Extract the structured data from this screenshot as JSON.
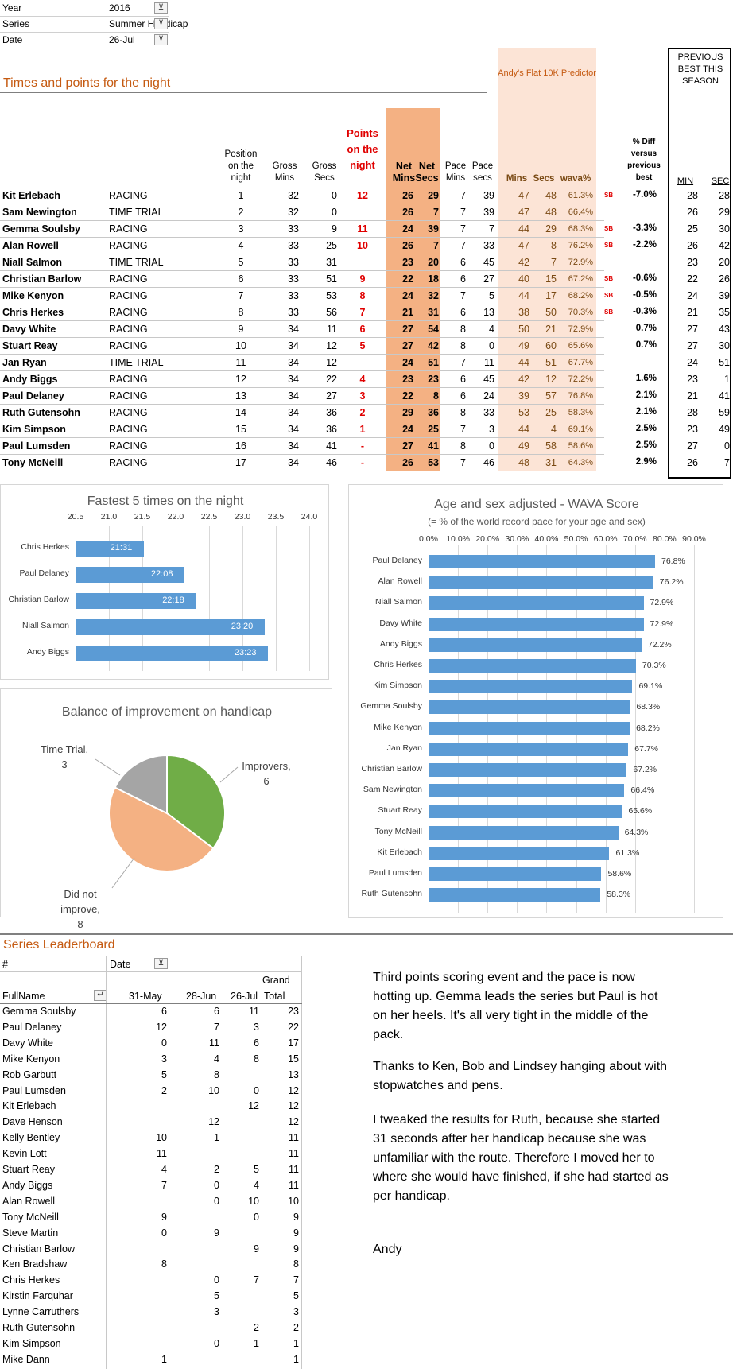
{
  "filters": [
    {
      "label": "Year",
      "value": "2016"
    },
    {
      "label": "Series",
      "value": "Summer Handicap"
    },
    {
      "label": "Date",
      "value": "26-Jul"
    }
  ],
  "section_title": "Times and points for the night",
  "predictor_title": "Andy's Flat 10K Predictor",
  "prev_best_title": "PREVIOUS BEST THIS SEASON",
  "headers": {
    "position": "Position on the night",
    "gross_mins": "Gross Mins",
    "gross_secs": "Gross Secs",
    "points": "Points on the night",
    "net_mins": "Net Mins",
    "net_secs": "Net Secs",
    "pace_mins": "Pace Mins",
    "pace_secs": "Pace secs",
    "p_mins": "Mins",
    "p_secs": "Secs",
    "wava": "wava%",
    "diff": "% Diff versus previous best",
    "min": "MIN",
    "sec": "SEC"
  },
  "results": [
    {
      "name": "Kit Erlebach",
      "type": "RACING",
      "pos": "1",
      "gm": "32",
      "gs": "0",
      "pts": "12",
      "nm": "26",
      "ns": "29",
      "pm": "7",
      "ps": "39",
      "mm": "47",
      "ms": "48",
      "wava": "61.3%",
      "sb": "SB",
      "diff": "-7.0%",
      "min": "28",
      "sec": "28"
    },
    {
      "name": "Sam Newington",
      "type": "TIME TRIAL",
      "pos": "2",
      "gm": "32",
      "gs": "0",
      "pts": "",
      "nm": "26",
      "ns": "7",
      "pm": "7",
      "ps": "39",
      "mm": "47",
      "ms": "48",
      "wava": "66.4%",
      "sb": "",
      "diff": "",
      "min": "26",
      "sec": "29"
    },
    {
      "name": "Gemma Soulsby",
      "type": "RACING",
      "pos": "3",
      "gm": "33",
      "gs": "9",
      "pts": "11",
      "nm": "24",
      "ns": "39",
      "pm": "7",
      "ps": "7",
      "mm": "44",
      "ms": "29",
      "wava": "68.3%",
      "sb": "SB",
      "diff": "-3.3%",
      "min": "25",
      "sec": "30"
    },
    {
      "name": "Alan Rowell",
      "type": "RACING",
      "pos": "4",
      "gm": "33",
      "gs": "25",
      "pts": "10",
      "nm": "26",
      "ns": "7",
      "pm": "7",
      "ps": "33",
      "mm": "47",
      "ms": "8",
      "wava": "76.2%",
      "sb": "SB",
      "diff": "-2.2%",
      "min": "26",
      "sec": "42"
    },
    {
      "name": "Niall Salmon",
      "type": "TIME TRIAL",
      "pos": "5",
      "gm": "33",
      "gs": "31",
      "pts": "",
      "nm": "23",
      "ns": "20",
      "pm": "6",
      "ps": "45",
      "mm": "42",
      "ms": "7",
      "wava": "72.9%",
      "sb": "",
      "diff": "",
      "min": "23",
      "sec": "20"
    },
    {
      "name": "Christian Barlow",
      "type": "RACING",
      "pos": "6",
      "gm": "33",
      "gs": "51",
      "pts": "9",
      "nm": "22",
      "ns": "18",
      "pm": "6",
      "ps": "27",
      "mm": "40",
      "ms": "15",
      "wava": "67.2%",
      "sb": "SB",
      "diff": "-0.6%",
      "min": "22",
      "sec": "26"
    },
    {
      "name": "Mike Kenyon",
      "type": "RACING",
      "pos": "7",
      "gm": "33",
      "gs": "53",
      "pts": "8",
      "nm": "24",
      "ns": "32",
      "pm": "7",
      "ps": "5",
      "mm": "44",
      "ms": "17",
      "wava": "68.2%",
      "sb": "SB",
      "diff": "-0.5%",
      "min": "24",
      "sec": "39"
    },
    {
      "name": "Chris Herkes",
      "type": "RACING",
      "pos": "8",
      "gm": "33",
      "gs": "56",
      "pts": "7",
      "nm": "21",
      "ns": "31",
      "pm": "6",
      "ps": "13",
      "mm": "38",
      "ms": "50",
      "wava": "70.3%",
      "sb": "SB",
      "diff": "-0.3%",
      "min": "21",
      "sec": "35"
    },
    {
      "name": "Davy White",
      "type": "RACING",
      "pos": "9",
      "gm": "34",
      "gs": "11",
      "pts": "6",
      "nm": "27",
      "ns": "54",
      "pm": "8",
      "ps": "4",
      "mm": "50",
      "ms": "21",
      "wava": "72.9%",
      "sb": "",
      "diff": "0.7%",
      "min": "27",
      "sec": "43"
    },
    {
      "name": "Stuart Reay",
      "type": "RACING",
      "pos": "10",
      "gm": "34",
      "gs": "12",
      "pts": "5",
      "nm": "27",
      "ns": "42",
      "pm": "8",
      "ps": "0",
      "mm": "49",
      "ms": "60",
      "wava": "65.6%",
      "sb": "",
      "diff": "0.7%",
      "min": "27",
      "sec": "30"
    },
    {
      "name": "Jan Ryan",
      "type": "TIME TRIAL",
      "pos": "11",
      "gm": "34",
      "gs": "12",
      "pts": "",
      "nm": "24",
      "ns": "51",
      "pm": "7",
      "ps": "11",
      "mm": "44",
      "ms": "51",
      "wava": "67.7%",
      "sb": "",
      "diff": "",
      "min": "24",
      "sec": "51"
    },
    {
      "name": "Andy Biggs",
      "type": "RACING",
      "pos": "12",
      "gm": "34",
      "gs": "22",
      "pts": "4",
      "nm": "23",
      "ns": "23",
      "pm": "6",
      "ps": "45",
      "mm": "42",
      "ms": "12",
      "wava": "72.2%",
      "sb": "",
      "diff": "1.6%",
      "min": "23",
      "sec": "1"
    },
    {
      "name": "Paul Delaney",
      "type": "RACING",
      "pos": "13",
      "gm": "34",
      "gs": "27",
      "pts": "3",
      "nm": "22",
      "ns": "8",
      "pm": "6",
      "ps": "24",
      "mm": "39",
      "ms": "57",
      "wava": "76.8%",
      "sb": "",
      "diff": "2.1%",
      "min": "21",
      "sec": "41"
    },
    {
      "name": "Ruth Gutensohn",
      "type": "RACING",
      "pos": "14",
      "gm": "34",
      "gs": "36",
      "pts": "2",
      "nm": "29",
      "ns": "36",
      "pm": "8",
      "ps": "33",
      "mm": "53",
      "ms": "25",
      "wava": "58.3%",
      "sb": "",
      "diff": "2.1%",
      "min": "28",
      "sec": "59"
    },
    {
      "name": "Kim Simpson",
      "type": "RACING",
      "pos": "15",
      "gm": "34",
      "gs": "36",
      "pts": "1",
      "nm": "24",
      "ns": "25",
      "pm": "7",
      "ps": "3",
      "mm": "44",
      "ms": "4",
      "wava": "69.1%",
      "sb": "",
      "diff": "2.5%",
      "min": "23",
      "sec": "49"
    },
    {
      "name": "Paul Lumsden",
      "type": "RACING",
      "pos": "16",
      "gm": "34",
      "gs": "41",
      "pts": "-",
      "nm": "27",
      "ns": "41",
      "pm": "8",
      "ps": "0",
      "mm": "49",
      "ms": "58",
      "wava": "58.6%",
      "sb": "",
      "diff": "2.5%",
      "min": "27",
      "sec": "0"
    },
    {
      "name": "Tony McNeill",
      "type": "RACING",
      "pos": "17",
      "gm": "34",
      "gs": "46",
      "pts": "-",
      "nm": "26",
      "ns": "53",
      "pm": "7",
      "ps": "46",
      "mm": "48",
      "ms": "31",
      "wava": "64.3%",
      "sb": "",
      "diff": "2.9%",
      "min": "26",
      "sec": "7"
    }
  ],
  "chart_data": [
    {
      "type": "bar",
      "title": "Fastest 5 times on the night",
      "categories": [
        "Chris Herkes",
        "Paul Delaney",
        "Christian Barlow",
        "Niall Salmon",
        "Andy Biggs"
      ],
      "values": [
        21.52,
        22.13,
        22.3,
        23.33,
        23.38
      ],
      "data_labels": [
        "21:31",
        "22:08",
        "22:18",
        "23:20",
        "23:23"
      ],
      "xlim": [
        20.5,
        24.0
      ],
      "ticks": [
        "20.5",
        "21.0",
        "21.5",
        "22.0",
        "22.5",
        "23.0",
        "23.5",
        "24.0"
      ]
    },
    {
      "type": "pie",
      "title": "Balance of improvement on handicap",
      "slices": [
        {
          "label": "Improvers,",
          "count": "6",
          "value": 6,
          "color": "#70ad47"
        },
        {
          "label": "Did not improve,",
          "count": "8",
          "value": 8,
          "color": "#f4b183"
        },
        {
          "label": "Time Trial,",
          "count": "3",
          "value": 3,
          "color": "#a5a5a5"
        }
      ]
    },
    {
      "type": "bar",
      "title": "Age and sex adjusted - WAVA Score",
      "subtitle": "(= % of the world record pace for your age and sex)",
      "categories": [
        "Paul Delaney",
        "Alan Rowell",
        "Niall Salmon",
        "Davy White",
        "Andy Biggs",
        "Chris Herkes",
        "Kim Simpson",
        "Gemma Soulsby",
        "Mike Kenyon",
        "Jan Ryan",
        "Christian Barlow",
        "Sam Newington",
        "Stuart Reay",
        "Tony McNeill",
        "Kit Erlebach",
        "Paul Lumsden",
        "Ruth Gutensohn"
      ],
      "values": [
        76.8,
        76.2,
        72.9,
        72.9,
        72.2,
        70.3,
        69.1,
        68.3,
        68.2,
        67.7,
        67.2,
        66.4,
        65.6,
        64.3,
        61.3,
        58.6,
        58.3
      ],
      "data_labels": [
        "76.8%",
        "76.2%",
        "72.9%",
        "72.9%",
        "72.2%",
        "70.3%",
        "69.1%",
        "68.3%",
        "68.2%",
        "67.7%",
        "67.2%",
        "66.4%",
        "65.6%",
        "64.3%",
        "61.3%",
        "58.6%",
        "58.3%"
      ],
      "xlim": [
        0,
        90
      ],
      "ticks": [
        "0.0%",
        "10.0%",
        "20.0%",
        "30.0%",
        "40.0%",
        "50.0%",
        "60.0%",
        "70.0%",
        "80.0%",
        "90.0%"
      ]
    }
  ],
  "leaderboard": {
    "title": "Series Leaderboard",
    "hash": "#",
    "date_label": "Date",
    "fullname": "FullName",
    "cols": [
      "31-May",
      "28-Jun",
      "26-Jul"
    ],
    "grand": "Grand",
    "total": "Total",
    "rows": [
      [
        "Gemma Soulsby",
        "6",
        "6",
        "11",
        "23"
      ],
      [
        "Paul Delaney",
        "12",
        "7",
        "3",
        "22"
      ],
      [
        "Davy White",
        "0",
        "11",
        "6",
        "17"
      ],
      [
        "Mike Kenyon",
        "3",
        "4",
        "8",
        "15"
      ],
      [
        "Rob Garbutt",
        "5",
        "8",
        "",
        "13"
      ],
      [
        "Paul Lumsden",
        "2",
        "10",
        "0",
        "12"
      ],
      [
        "Kit Erlebach",
        "",
        "",
        "12",
        "12"
      ],
      [
        "Dave Henson",
        "",
        "12",
        "",
        "12"
      ],
      [
        "Kelly Bentley",
        "10",
        "1",
        "",
        "11"
      ],
      [
        "Kevin Lott",
        "11",
        "",
        "",
        "11"
      ],
      [
        "Stuart Reay",
        "4",
        "2",
        "5",
        "11"
      ],
      [
        "Andy Biggs",
        "7",
        "0",
        "4",
        "11"
      ],
      [
        "Alan Rowell",
        "",
        "0",
        "10",
        "10"
      ],
      [
        "Tony McNeill",
        "9",
        "",
        "0",
        "9"
      ],
      [
        "Steve Martin",
        "0",
        "9",
        "",
        "9"
      ],
      [
        "Christian Barlow",
        "",
        "",
        "9",
        "9"
      ],
      [
        "Ken Bradshaw",
        "8",
        "",
        "",
        "8"
      ],
      [
        "Chris Herkes",
        "",
        "0",
        "7",
        "7"
      ],
      [
        "Kirstin Farquhar",
        "",
        "5",
        "",
        "5"
      ],
      [
        "Lynne Carruthers",
        "",
        "3",
        "",
        "3"
      ],
      [
        "Ruth Gutensohn",
        "",
        "",
        "2",
        "2"
      ],
      [
        "Kim Simpson",
        "",
        "0",
        "1",
        "1"
      ],
      [
        "Mike Dann",
        "1",
        "",
        "",
        "1"
      ]
    ]
  },
  "notes": [
    "Third points scoring event and the pace is now hotting up.  Gemma leads the series but Paul is hot on her heels.  It's all very tight in the middle of the pack.",
    "Thanks to Ken, Bob and Lindsey hanging about with stopwatches and pens.",
    "I tweaked the results for Ruth, because she started 31 seconds after her handicap because she was unfamiliar with the route.  Therefore I moved her to where she would have finished, if she had started as per handicap.",
    "Andy"
  ]
}
